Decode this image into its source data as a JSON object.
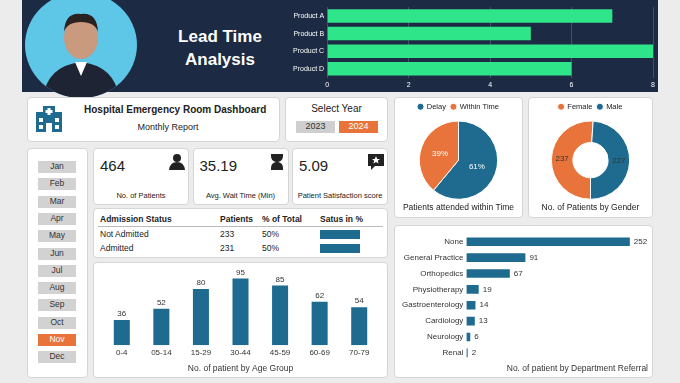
{
  "header": {
    "title": "Lead Time Analysis"
  },
  "dashboard": {
    "title": "Hospital Emergency Room Dashboard",
    "subtitle": "Monthly Report"
  },
  "year_selector": {
    "label": "Select Year",
    "years": [
      2023,
      2024
    ],
    "selected": 2024
  },
  "months": [
    "Jan",
    "Feb",
    "Mar",
    "Apr",
    "May",
    "Jun",
    "Jul",
    "Aug",
    "Sep",
    "Oct",
    "Nov",
    "Dec"
  ],
  "selected_month": "Nov",
  "kpis": [
    {
      "value": 464,
      "label": "No. of Patients"
    },
    {
      "value": 35.19,
      "label": "Avg. Wait Time (Min)"
    },
    {
      "value": 5.09,
      "label": "Patient Satisfaction score"
    }
  ],
  "table": {
    "columns": [
      "Admission Status",
      "Patients",
      "% of Total",
      "Satus in %"
    ],
    "rows": [
      [
        "Not Admitted",
        233,
        "50%"
      ],
      [
        "Admitted",
        231,
        "50%"
      ]
    ]
  },
  "chart_data": [
    {
      "type": "bar",
      "orientation": "horizontal",
      "categories": [
        "Product A",
        "Product B",
        "Product C",
        "Product D"
      ],
      "values": [
        7,
        5,
        8,
        6
      ],
      "color": "#2fe58a",
      "xlim": [
        0,
        8
      ],
      "xticks": [
        0,
        2,
        4,
        6,
        8
      ],
      "grid": true
    },
    {
      "type": "pie",
      "title": "Patients attended within Time",
      "categories": [
        "Delay",
        "Within Time"
      ],
      "values": [
        61,
        39
      ],
      "value_labels": [
        "61%",
        "39%"
      ],
      "colors": [
        "#1f6b8f",
        "#e8743b"
      ],
      "legend": "top",
      "data_labels": true
    },
    {
      "type": "doughnut",
      "title": "No. of Patients by Gender",
      "categories": [
        "Female",
        "Male"
      ],
      "values": [
        237,
        227
      ],
      "colors": [
        "#e8743b",
        "#1f6b8f"
      ],
      "legend": "top",
      "data_labels": true
    },
    {
      "type": "bar",
      "title": "No. of patient by Age Group",
      "categories": [
        "0-4",
        "05-14",
        "15-29",
        "30-44",
        "45-59",
        "60-69",
        "70-79"
      ],
      "values": [
        36,
        52,
        80,
        95,
        85,
        62,
        54
      ],
      "color": "#1f6b8f",
      "ylim": [
        0,
        100
      ],
      "tick_labels": "x",
      "grid": false,
      "data_labels": true
    },
    {
      "type": "bar",
      "orientation": "horizontal",
      "title": "No. of patient by Department Referral",
      "categories": [
        "None",
        "General Practice",
        "Orthopedics",
        "Physiotherapy",
        "Gastroenterology",
        "Cardiology",
        "Neurology",
        "Renal"
      ],
      "values": [
        252,
        91,
        67,
        19,
        14,
        13,
        6,
        2
      ],
      "color": "#1f6b8f",
      "xlim": [
        0,
        280
      ],
      "tick_labels": "y",
      "grid": false,
      "data_labels": true
    }
  ]
}
